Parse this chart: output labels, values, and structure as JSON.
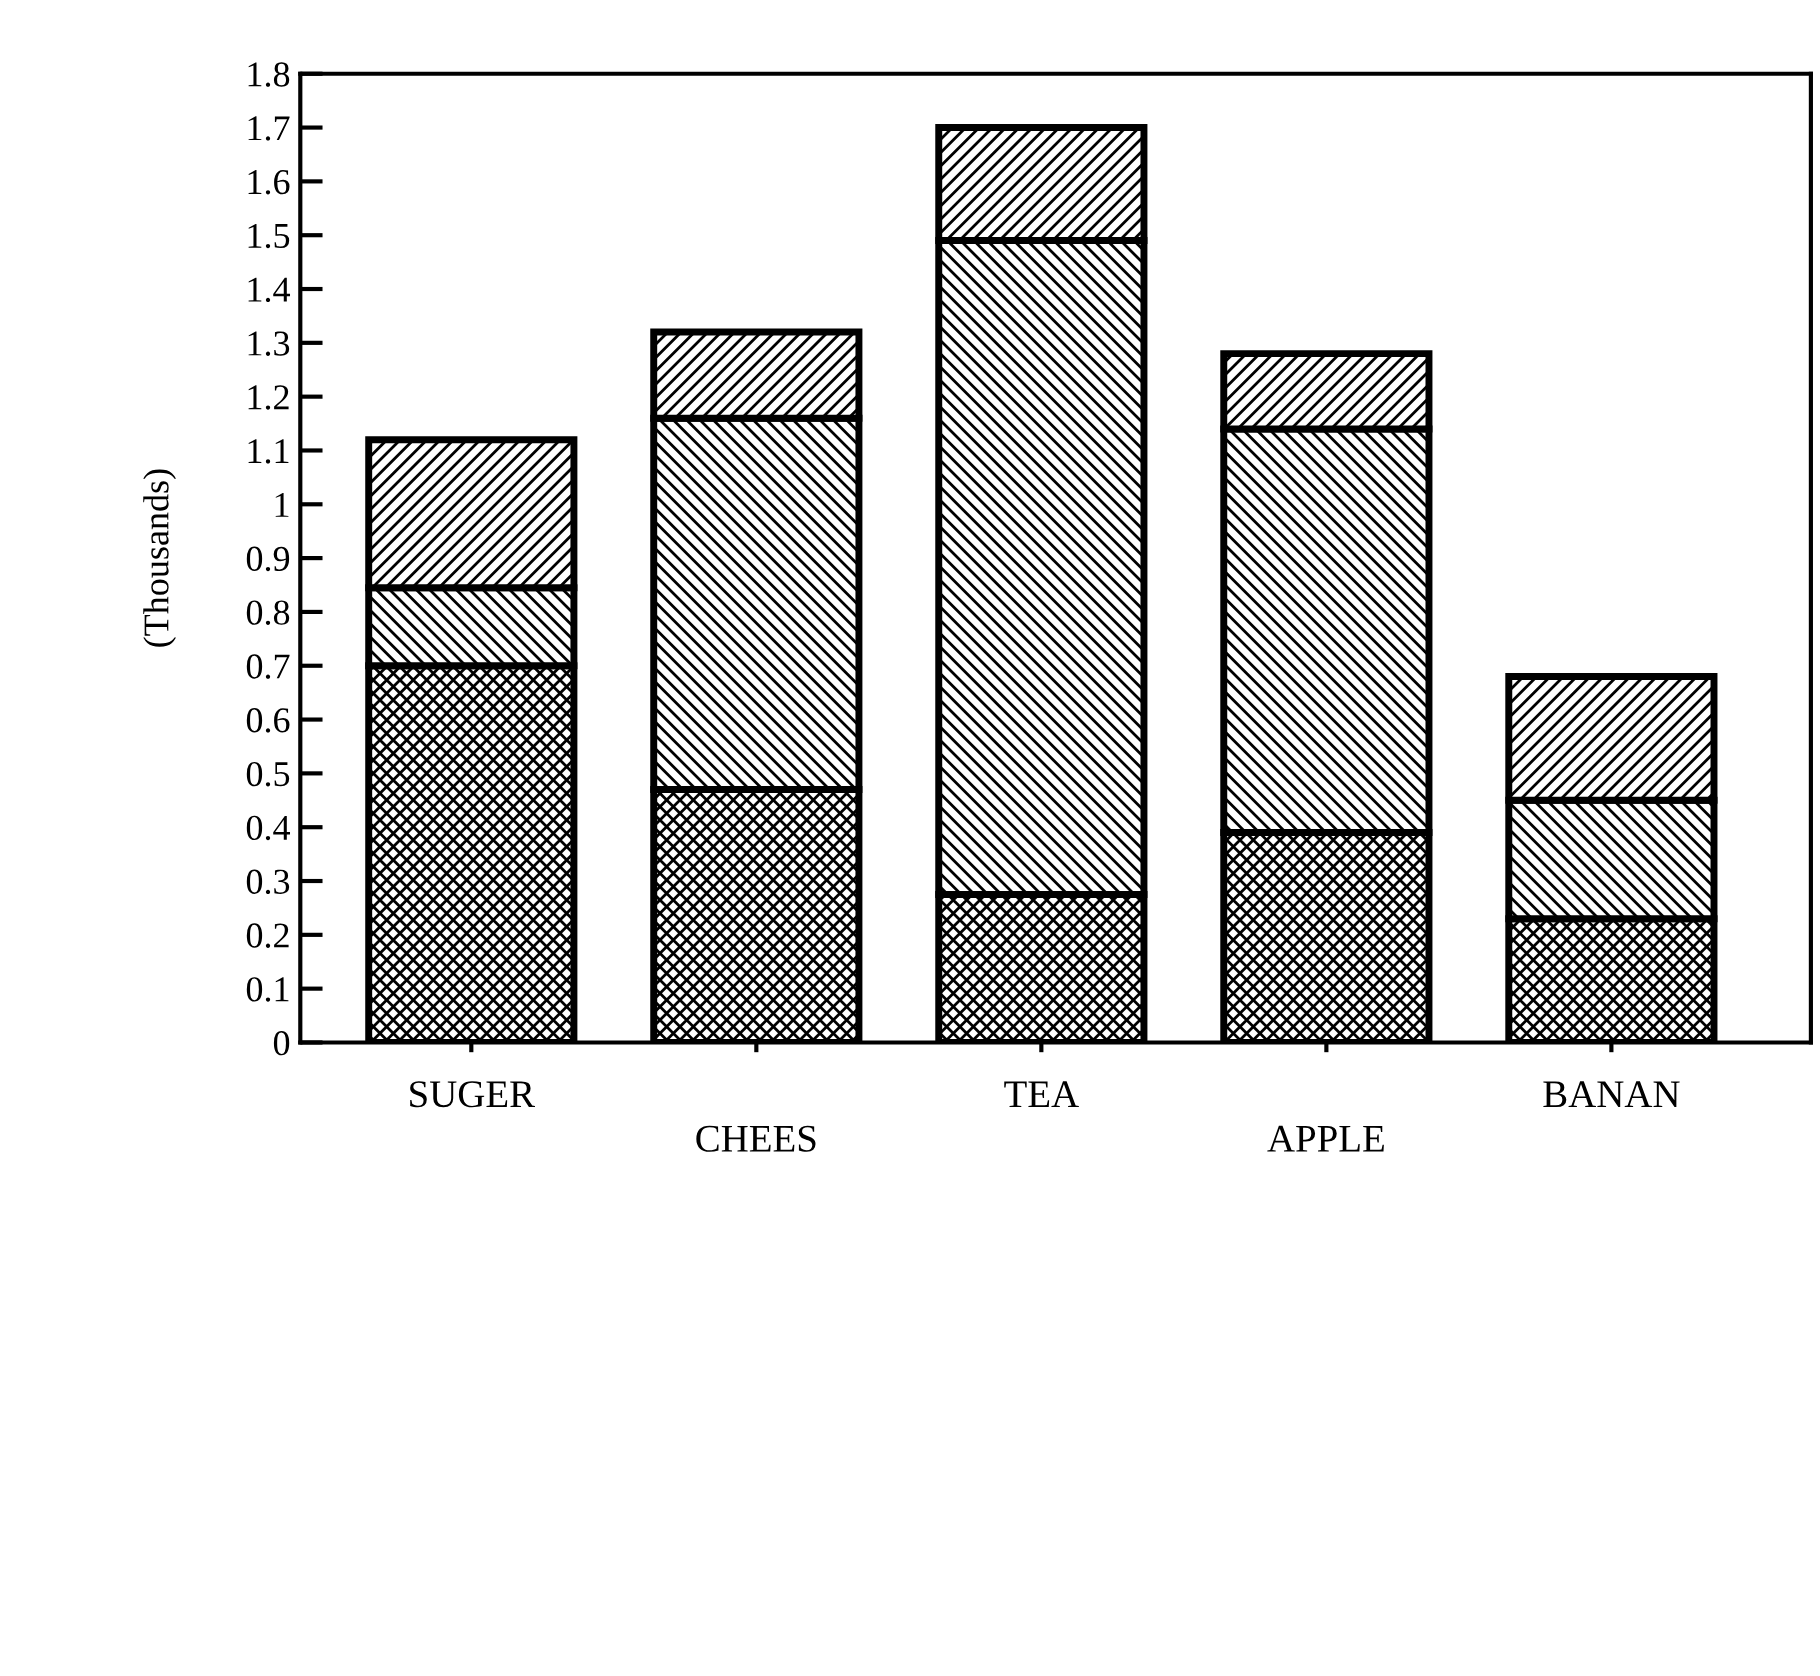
{
  "chart_data": {
    "type": "bar",
    "stacked": true,
    "ylabel": "(Thousands)",
    "categories": [
      "SUGER",
      "CHEES",
      "TEA",
      "APPLE",
      "BANAN"
    ],
    "series": [
      {
        "color": "#000000",
        "values": [
          0.7,
          0.47,
          0.275,
          0.39,
          0.23
        ]
      },
      {
        "color": "#000000",
        "values": [
          0.145,
          0.69,
          1.215,
          0.75,
          0.22
        ]
      },
      {
        "color": "#000000",
        "values": [
          0.275,
          0.16,
          0.21,
          0.14,
          0.23
        ]
      }
    ],
    "ylim": [
      0,
      1.8
    ],
    "yticks": [
      0,
      0.1,
      0.2,
      0.3,
      0.4,
      0.5,
      0.6,
      0.7,
      0.8,
      0.9,
      1,
      1.1,
      1.2,
      1.3,
      1.4,
      1.5,
      1.6,
      1.7,
      1.8
    ],
    "grid": false,
    "legend": false
  }
}
